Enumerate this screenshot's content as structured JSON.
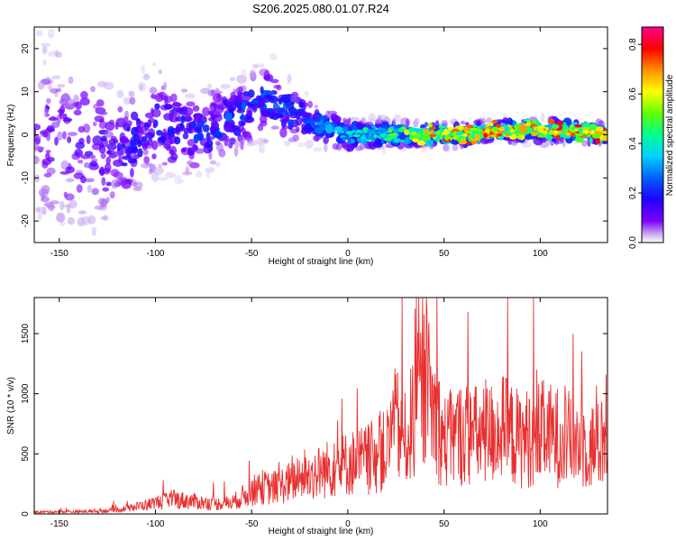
{
  "title": "S206.2025.080.01.07.R24",
  "chart_data": [
    {
      "type": "heatmap",
      "title": "S206.2025.080.01.07.R24",
      "xlabel": "Height of straight line (km)",
      "ylabel": "Frequency (Hz)",
      "xlim": [
        -163,
        135
      ],
      "ylim": [
        -25,
        25
      ],
      "x_ticks": [
        -150,
        -100,
        -50,
        0,
        50,
        100
      ],
      "y_ticks": [
        -20,
        -10,
        0,
        10,
        20
      ],
      "grid": false,
      "colorbar": {
        "label": "Normalized spectral amplitude",
        "range": [
          0.0,
          0.87
        ],
        "ticks": [
          0.0,
          0.2,
          0.4,
          0.6,
          0.8
        ],
        "colormap": "rainbow (white, purple, blue, cyan, green, yellow, orange, red, magenta)",
        "colors": [
          "#ffffff",
          "#8a2be2",
          "#5a00d6",
          "#0000ff",
          "#00c8ff",
          "#00ff80",
          "#80ff00",
          "#ffff00",
          "#ff8000",
          "#ff0000",
          "#ff0080"
        ]
      },
      "ridge": {
        "description_points_x": [
          -163,
          -140,
          -120,
          -100,
          -80,
          -60,
          -40,
          -20,
          0,
          20,
          40,
          60,
          80,
          100,
          120,
          135
        ],
        "center_frequency": [
          0,
          -2,
          -5,
          3,
          0,
          4,
          8,
          3,
          0,
          0,
          0,
          0,
          1,
          1,
          1,
          0
        ],
        "spread": [
          20,
          18,
          12,
          10,
          8,
          7,
          7,
          4,
          3,
          2.5,
          2,
          2,
          2,
          2,
          2,
          1.5
        ],
        "peak_amplitude": [
          0.12,
          0.15,
          0.2,
          0.22,
          0.25,
          0.28,
          0.3,
          0.3,
          0.42,
          0.5,
          0.75,
          0.8,
          0.78,
          0.8,
          0.82,
          0.85
        ]
      }
    },
    {
      "type": "line",
      "xlabel": "Height of straight line (km)",
      "ylabel": "SNR (10 * v/v)",
      "xlim": [
        -163,
        135
      ],
      "ylim": [
        0,
        1800
      ],
      "x_ticks": [
        -150,
        -100,
        -50,
        0,
        50,
        100
      ],
      "y_ticks": [
        0,
        500,
        1000,
        1500
      ],
      "grid": false,
      "color": "#e83030",
      "series": [
        {
          "x": [
            -163,
            -150,
            -140,
            -130,
            -120,
            -110,
            -100,
            -90,
            -80,
            -70,
            -60,
            -50,
            -45,
            -40,
            -30,
            -20,
            -10,
            0,
            10,
            20,
            25,
            30,
            40,
            50,
            60,
            70,
            80,
            90,
            100,
            110,
            120,
            130,
            135
          ],
          "y": [
            20,
            25,
            25,
            30,
            45,
            80,
            120,
            160,
            140,
            110,
            130,
            250,
            300,
            280,
            350,
            420,
            500,
            560,
            600,
            700,
            1000,
            800,
            1450,
            800,
            900,
            850,
            950,
            820,
            900,
            850,
            800,
            750,
            900
          ]
        }
      ]
    }
  ]
}
